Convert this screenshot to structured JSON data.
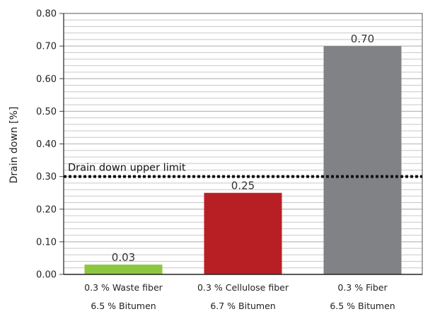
{
  "chart_data": {
    "type": "bar",
    "categories": [
      [
        "0.3 % Waste fiber",
        "6.5 % Bitumen"
      ],
      [
        "0.3 % Cellulose fiber",
        "6.7 % Bitumen"
      ],
      [
        "0.3 % Fiber",
        "6.5 % Bitumen"
      ]
    ],
    "values": [
      0.03,
      0.25,
      0.7
    ],
    "value_labels": [
      "0.03",
      "0.25",
      "0.70"
    ],
    "bar_colors": [
      "#8dc63f",
      "#b81f25",
      "#808285"
    ],
    "ylabel": "Drain down [%]",
    "xlabel": "",
    "ylim": [
      0,
      0.8
    ],
    "yticks": [
      0.0,
      0.1,
      0.2,
      0.3,
      0.4,
      0.5,
      0.6,
      0.7,
      0.8
    ],
    "ytick_labels": [
      "0.00",
      "0.10",
      "0.20",
      "0.30",
      "0.40",
      "0.50",
      "0.60",
      "0.70",
      "0.80"
    ],
    "minor_grid_step": 0.02,
    "grid": true,
    "reference_line": {
      "value": 0.3,
      "label": "Drain down upper limit",
      "style": "dotted"
    }
  }
}
